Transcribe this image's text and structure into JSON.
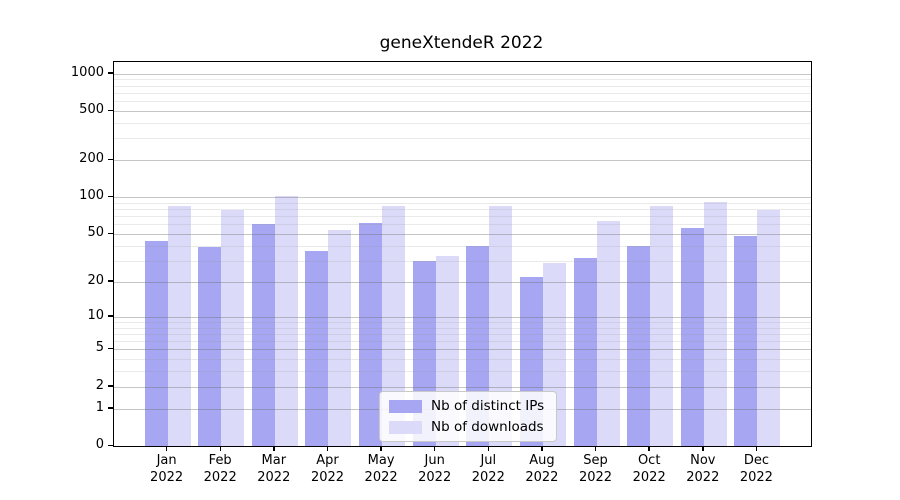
{
  "title": "geneXtendeR 2022",
  "chart_data": {
    "type": "bar",
    "title": "geneXtendeR 2022",
    "y_scale": "log10(1+value)",
    "grid": true,
    "legend_position": "lower-center-right-inside",
    "categories": [
      {
        "month": "Jan",
        "year": "2022"
      },
      {
        "month": "Feb",
        "year": "2022"
      },
      {
        "month": "Mar",
        "year": "2022"
      },
      {
        "month": "Apr",
        "year": "2022"
      },
      {
        "month": "May",
        "year": "2022"
      },
      {
        "month": "Jun",
        "year": "2022"
      },
      {
        "month": "Jul",
        "year": "2022"
      },
      {
        "month": "Aug",
        "year": "2022"
      },
      {
        "month": "Sep",
        "year": "2022"
      },
      {
        "month": "Oct",
        "year": "2022"
      },
      {
        "month": "Nov",
        "year": "2022"
      },
      {
        "month": "Dec",
        "year": "2022"
      }
    ],
    "series": [
      {
        "name": "Nb of distinct IPs",
        "color": "#a6a6f2",
        "values": [
          44,
          39,
          61,
          36,
          62,
          30,
          40,
          22,
          32,
          40,
          56,
          48
        ]
      },
      {
        "name": "Nb of downloads",
        "color": "#dbdbf9",
        "values": [
          85,
          79,
          103,
          54,
          85,
          33,
          85,
          29,
          64,
          85,
          92,
          79
        ]
      }
    ],
    "y_axis": {
      "tick_labels": [
        "0",
        "1",
        "2",
        "5",
        "10",
        "20",
        "50",
        "100",
        "200",
        "500",
        "1000"
      ],
      "major_ticks": [
        0,
        1,
        2,
        5,
        10,
        20,
        50,
        100,
        200,
        500,
        1000
      ],
      "minor_ticks": [
        3,
        4,
        6,
        7,
        8,
        9,
        30,
        40,
        60,
        70,
        80,
        90,
        300,
        400,
        600,
        700,
        800,
        900
      ],
      "ylim": [
        0,
        1240
      ]
    }
  }
}
